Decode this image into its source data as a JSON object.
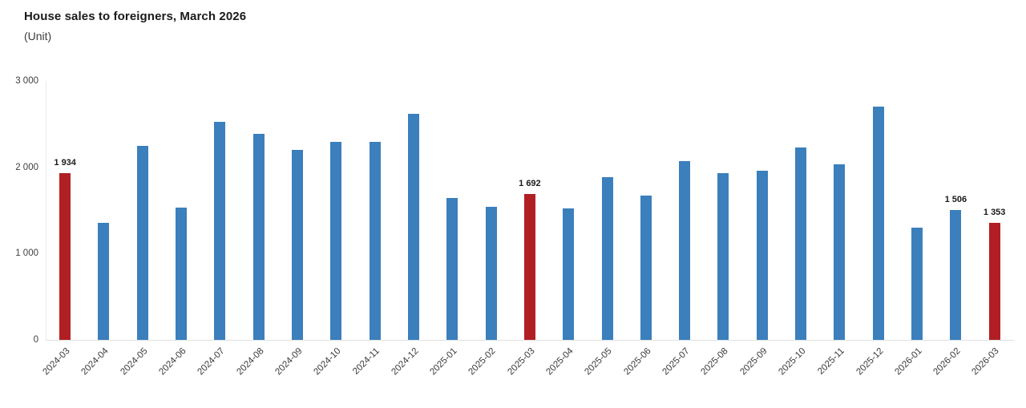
{
  "header": {
    "title": "House sales to foreigners, March 2026",
    "subtitle": "(Unit)"
  },
  "colors": {
    "bar_default": "#3b7fbc",
    "bar_highlight": "#b11f24",
    "axis_line": "#e0e0e0",
    "tick_text": "#404040",
    "title_text": "#1a1a1a"
  },
  "chart_data": {
    "type": "bar",
    "title": "House sales to foreigners, March 2026",
    "ylabel": "(Unit)",
    "xlabel": "",
    "ylim": [
      0,
      3000
    ],
    "grid": false,
    "legend": "none",
    "yticks": [
      {
        "label": "3 000",
        "value": 3000
      },
      {
        "label": "2 000",
        "value": 2000
      },
      {
        "label": "1 000",
        "value": 1000
      },
      {
        "label": "0",
        "value": 0
      }
    ],
    "categories": [
      "2024-03",
      "2024-04",
      "2024-05",
      "2024-06",
      "2024-07",
      "2024-08",
      "2024-09",
      "2024-10",
      "2024-11",
      "2024-12",
      "2025-01",
      "2025-02",
      "2025-03",
      "2025-04",
      "2025-05",
      "2025-06",
      "2025-07",
      "2025-08",
      "2025-09",
      "2025-10",
      "2025-11",
      "2025-12",
      "2026-01",
      "2026-02",
      "2026-03"
    ],
    "values": [
      1934,
      1360,
      2250,
      1530,
      2530,
      2390,
      2200,
      2290,
      2290,
      2620,
      1640,
      1540,
      1692,
      1520,
      1890,
      1670,
      2070,
      1930,
      1960,
      2230,
      2030,
      2700,
      1300,
      1506,
      1353
    ],
    "highlighted_categories": [
      "2024-03",
      "2025-03",
      "2026-03"
    ],
    "data_labels": {
      "2024-03": "1 934",
      "2025-03": "1 692",
      "2026-02": "1 506",
      "2026-03": "1 353"
    }
  }
}
